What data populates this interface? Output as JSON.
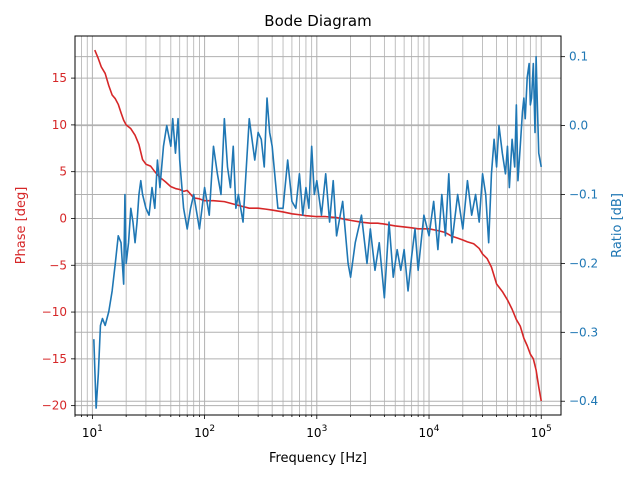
{
  "chart_data": {
    "type": "line",
    "title": "Bode Diagram",
    "xlabel": "Frequency [Hz]",
    "x_scale": "log",
    "xlim": [
      7.0,
      150000
    ],
    "grid": true,
    "x_tick_labels": [
      {
        "base": "10",
        "exp": "1",
        "value": 10
      },
      {
        "base": "10",
        "exp": "2",
        "value": 100
      },
      {
        "base": "10",
        "exp": "3",
        "value": 1000
      },
      {
        "base": "10",
        "exp": "4",
        "value": 10000
      },
      {
        "base": "10",
        "exp": "5",
        "value": 100000
      }
    ],
    "left_axis": {
      "label": "Phase [deg]",
      "color": "#d62728",
      "ylim": [
        -21,
        19.5
      ],
      "ticks": [
        -20,
        -15,
        -10,
        -5,
        0,
        5,
        10,
        15
      ],
      "tick_labels": [
        "−20",
        "−15",
        "−10",
        "−5",
        "0",
        "5",
        "10",
        "15"
      ]
    },
    "right_axis": {
      "label": "Ratio [dB]",
      "color": "#1f77b4",
      "ylim": [
        -0.42,
        0.13
      ],
      "ticks": [
        -0.4,
        -0.3,
        -0.2,
        -0.1,
        0.0,
        0.1
      ],
      "tick_labels": [
        "−0.4",
        "−0.3",
        "−0.2",
        "−0.1",
        "0.0",
        "0.1"
      ]
    },
    "series": [
      {
        "axis": "left",
        "color": "#d62728",
        "points": [
          [
            10.5,
            18.0
          ],
          [
            11.2,
            17.2
          ],
          [
            12,
            16.2
          ],
          [
            13,
            15.5
          ],
          [
            14,
            14.2
          ],
          [
            15,
            13.2
          ],
          [
            16,
            12.8
          ],
          [
            17,
            12.2
          ],
          [
            18,
            11.3
          ],
          [
            19,
            10.5
          ],
          [
            20,
            10.0
          ],
          [
            22,
            9.6
          ],
          [
            24,
            8.9
          ],
          [
            26,
            7.9
          ],
          [
            28,
            6.3
          ],
          [
            30,
            5.8
          ],
          [
            33,
            5.6
          ],
          [
            36,
            5.0
          ],
          [
            40,
            4.4
          ],
          [
            45,
            3.9
          ],
          [
            50,
            3.4
          ],
          [
            55,
            3.2
          ],
          [
            60,
            3.1
          ],
          [
            65,
            2.9
          ],
          [
            70,
            3.0
          ],
          [
            80,
            2.2
          ],
          [
            90,
            2.1
          ],
          [
            100,
            1.9
          ],
          [
            120,
            1.9
          ],
          [
            150,
            1.8
          ],
          [
            200,
            1.4
          ],
          [
            250,
            1.1
          ],
          [
            300,
            1.1
          ],
          [
            350,
            1.0
          ],
          [
            400,
            0.9
          ],
          [
            500,
            0.7
          ],
          [
            600,
            0.5
          ],
          [
            700,
            0.4
          ],
          [
            800,
            0.3
          ],
          [
            1000,
            0.2
          ],
          [
            1200,
            0.2
          ],
          [
            1500,
            0.1
          ],
          [
            1800,
            -0.1
          ],
          [
            2000,
            -0.2
          ],
          [
            2500,
            -0.4
          ],
          [
            3000,
            -0.5
          ],
          [
            3500,
            -0.5
          ],
          [
            4000,
            -0.6
          ],
          [
            5000,
            -0.8
          ],
          [
            6000,
            -0.9
          ],
          [
            7000,
            -1.0
          ],
          [
            8000,
            -1.1
          ],
          [
            10000,
            -1.1
          ],
          [
            12000,
            -1.3
          ],
          [
            14000,
            -1.5
          ],
          [
            16000,
            -1.9
          ],
          [
            18000,
            -2.1
          ],
          [
            20000,
            -2.3
          ],
          [
            22000,
            -2.5
          ],
          [
            25000,
            -2.7
          ],
          [
            28000,
            -3.2
          ],
          [
            30000,
            -3.8
          ],
          [
            33000,
            -4.3
          ],
          [
            36000,
            -5.2
          ],
          [
            40000,
            -7.0
          ],
          [
            45000,
            -7.8
          ],
          [
            50000,
            -8.7
          ],
          [
            55000,
            -9.7
          ],
          [
            60000,
            -10.8
          ],
          [
            65000,
            -11.5
          ],
          [
            70000,
            -12.8
          ],
          [
            75000,
            -13.6
          ],
          [
            80000,
            -14.5
          ],
          [
            85000,
            -15.0
          ],
          [
            90000,
            -16.2
          ],
          [
            95000,
            -18.0
          ],
          [
            100000,
            -19.5
          ]
        ]
      },
      {
        "axis": "right",
        "color": "#1f77b4",
        "points": [
          [
            10.3,
            -0.31
          ],
          [
            10.8,
            -0.41
          ],
          [
            11.3,
            -0.36
          ],
          [
            11.8,
            -0.29
          ],
          [
            12.3,
            -0.28
          ],
          [
            13,
            -0.29
          ],
          [
            14,
            -0.27
          ],
          [
            15,
            -0.24
          ],
          [
            16,
            -0.2
          ],
          [
            17,
            -0.16
          ],
          [
            18,
            -0.17
          ],
          [
            19,
            -0.23
          ],
          [
            19.5,
            -0.1
          ],
          [
            20,
            -0.2
          ],
          [
            21,
            -0.17
          ],
          [
            22,
            -0.12
          ],
          [
            23,
            -0.14
          ],
          [
            24,
            -0.17
          ],
          [
            25,
            -0.14
          ],
          [
            26,
            -0.1
          ],
          [
            27,
            -0.08
          ],
          [
            28,
            -0.1
          ],
          [
            30,
            -0.12
          ],
          [
            32,
            -0.13
          ],
          [
            34,
            -0.09
          ],
          [
            36,
            -0.12
          ],
          [
            38,
            -0.05
          ],
          [
            40,
            -0.09
          ],
          [
            43,
            -0.03
          ],
          [
            46,
            -0.0
          ],
          [
            50,
            -0.03
          ],
          [
            52,
            0.01
          ],
          [
            55,
            -0.04
          ],
          [
            58,
            0.01
          ],
          [
            60,
            -0.05
          ],
          [
            65,
            -0.12
          ],
          [
            70,
            -0.15
          ],
          [
            75,
            -0.12
          ],
          [
            80,
            -0.1
          ],
          [
            90,
            -0.15
          ],
          [
            100,
            -0.09
          ],
          [
            110,
            -0.13
          ],
          [
            120,
            -0.03
          ],
          [
            130,
            -0.07
          ],
          [
            140,
            -0.1
          ],
          [
            150,
            0.01
          ],
          [
            160,
            -0.06
          ],
          [
            170,
            -0.09
          ],
          [
            180,
            -0.03
          ],
          [
            190,
            -0.12
          ],
          [
            200,
            -0.1
          ],
          [
            220,
            -0.14
          ],
          [
            250,
            0.01
          ],
          [
            280,
            -0.05
          ],
          [
            300,
            -0.01
          ],
          [
            320,
            -0.02
          ],
          [
            340,
            -0.06
          ],
          [
            360,
            0.04
          ],
          [
            380,
            -0.01
          ],
          [
            400,
            -0.03
          ],
          [
            450,
            -0.12
          ],
          [
            500,
            -0.12
          ],
          [
            550,
            -0.05
          ],
          [
            600,
            -0.11
          ],
          [
            650,
            -0.12
          ],
          [
            700,
            -0.07
          ],
          [
            750,
            -0.13
          ],
          [
            800,
            -0.09
          ],
          [
            850,
            -0.12
          ],
          [
            900,
            -0.03
          ],
          [
            950,
            -0.1
          ],
          [
            1000,
            -0.08
          ],
          [
            1100,
            -0.13
          ],
          [
            1200,
            -0.07
          ],
          [
            1300,
            -0.14
          ],
          [
            1400,
            -0.08
          ],
          [
            1500,
            -0.16
          ],
          [
            1700,
            -0.11
          ],
          [
            1900,
            -0.2
          ],
          [
            2000,
            -0.22
          ],
          [
            2200,
            -0.17
          ],
          [
            2500,
            -0.13
          ],
          [
            2800,
            -0.2
          ],
          [
            3000,
            -0.15
          ],
          [
            3300,
            -0.21
          ],
          [
            3600,
            -0.17
          ],
          [
            4000,
            -0.25
          ],
          [
            4400,
            -0.14
          ],
          [
            4800,
            -0.22
          ],
          [
            5200,
            -0.18
          ],
          [
            5600,
            -0.21
          ],
          [
            6000,
            -0.18
          ],
          [
            6500,
            -0.24
          ],
          [
            7000,
            -0.19
          ],
          [
            7500,
            -0.15
          ],
          [
            8000,
            -0.21
          ],
          [
            9000,
            -0.13
          ],
          [
            10000,
            -0.16
          ],
          [
            11000,
            -0.11
          ],
          [
            12000,
            -0.18
          ],
          [
            13000,
            -0.1
          ],
          [
            14000,
            -0.16
          ],
          [
            15000,
            -0.07
          ],
          [
            16000,
            -0.17
          ],
          [
            18000,
            -0.1
          ],
          [
            20000,
            -0.15
          ],
          [
            22000,
            -0.08
          ],
          [
            24000,
            -0.13
          ],
          [
            26000,
            -0.1
          ],
          [
            28000,
            -0.14
          ],
          [
            30000,
            -0.07
          ],
          [
            32000,
            -0.1
          ],
          [
            34000,
            -0.17
          ],
          [
            36000,
            -0.07
          ],
          [
            38000,
            -0.02
          ],
          [
            40000,
            -0.06
          ],
          [
            42000,
            0.0
          ],
          [
            45000,
            -0.04
          ],
          [
            48000,
            -0.07
          ],
          [
            50000,
            -0.03
          ],
          [
            52000,
            -0.09
          ],
          [
            55000,
            -0.02
          ],
          [
            58000,
            -0.06
          ],
          [
            60000,
            0.03
          ],
          [
            62000,
            -0.08
          ],
          [
            65000,
            -0.03
          ],
          [
            68000,
            0.02
          ],
          [
            70000,
            0.04
          ],
          [
            72000,
            0.01
          ],
          [
            75000,
            0.07
          ],
          [
            78000,
            0.09
          ],
          [
            80000,
            0.03
          ],
          [
            82000,
            0.04
          ],
          [
            85000,
            0.09
          ],
          [
            88000,
            -0.01
          ],
          [
            90000,
            0.1
          ],
          [
            92000,
            0.04
          ],
          [
            95000,
            -0.04
          ],
          [
            100000,
            -0.06
          ]
        ]
      }
    ]
  }
}
